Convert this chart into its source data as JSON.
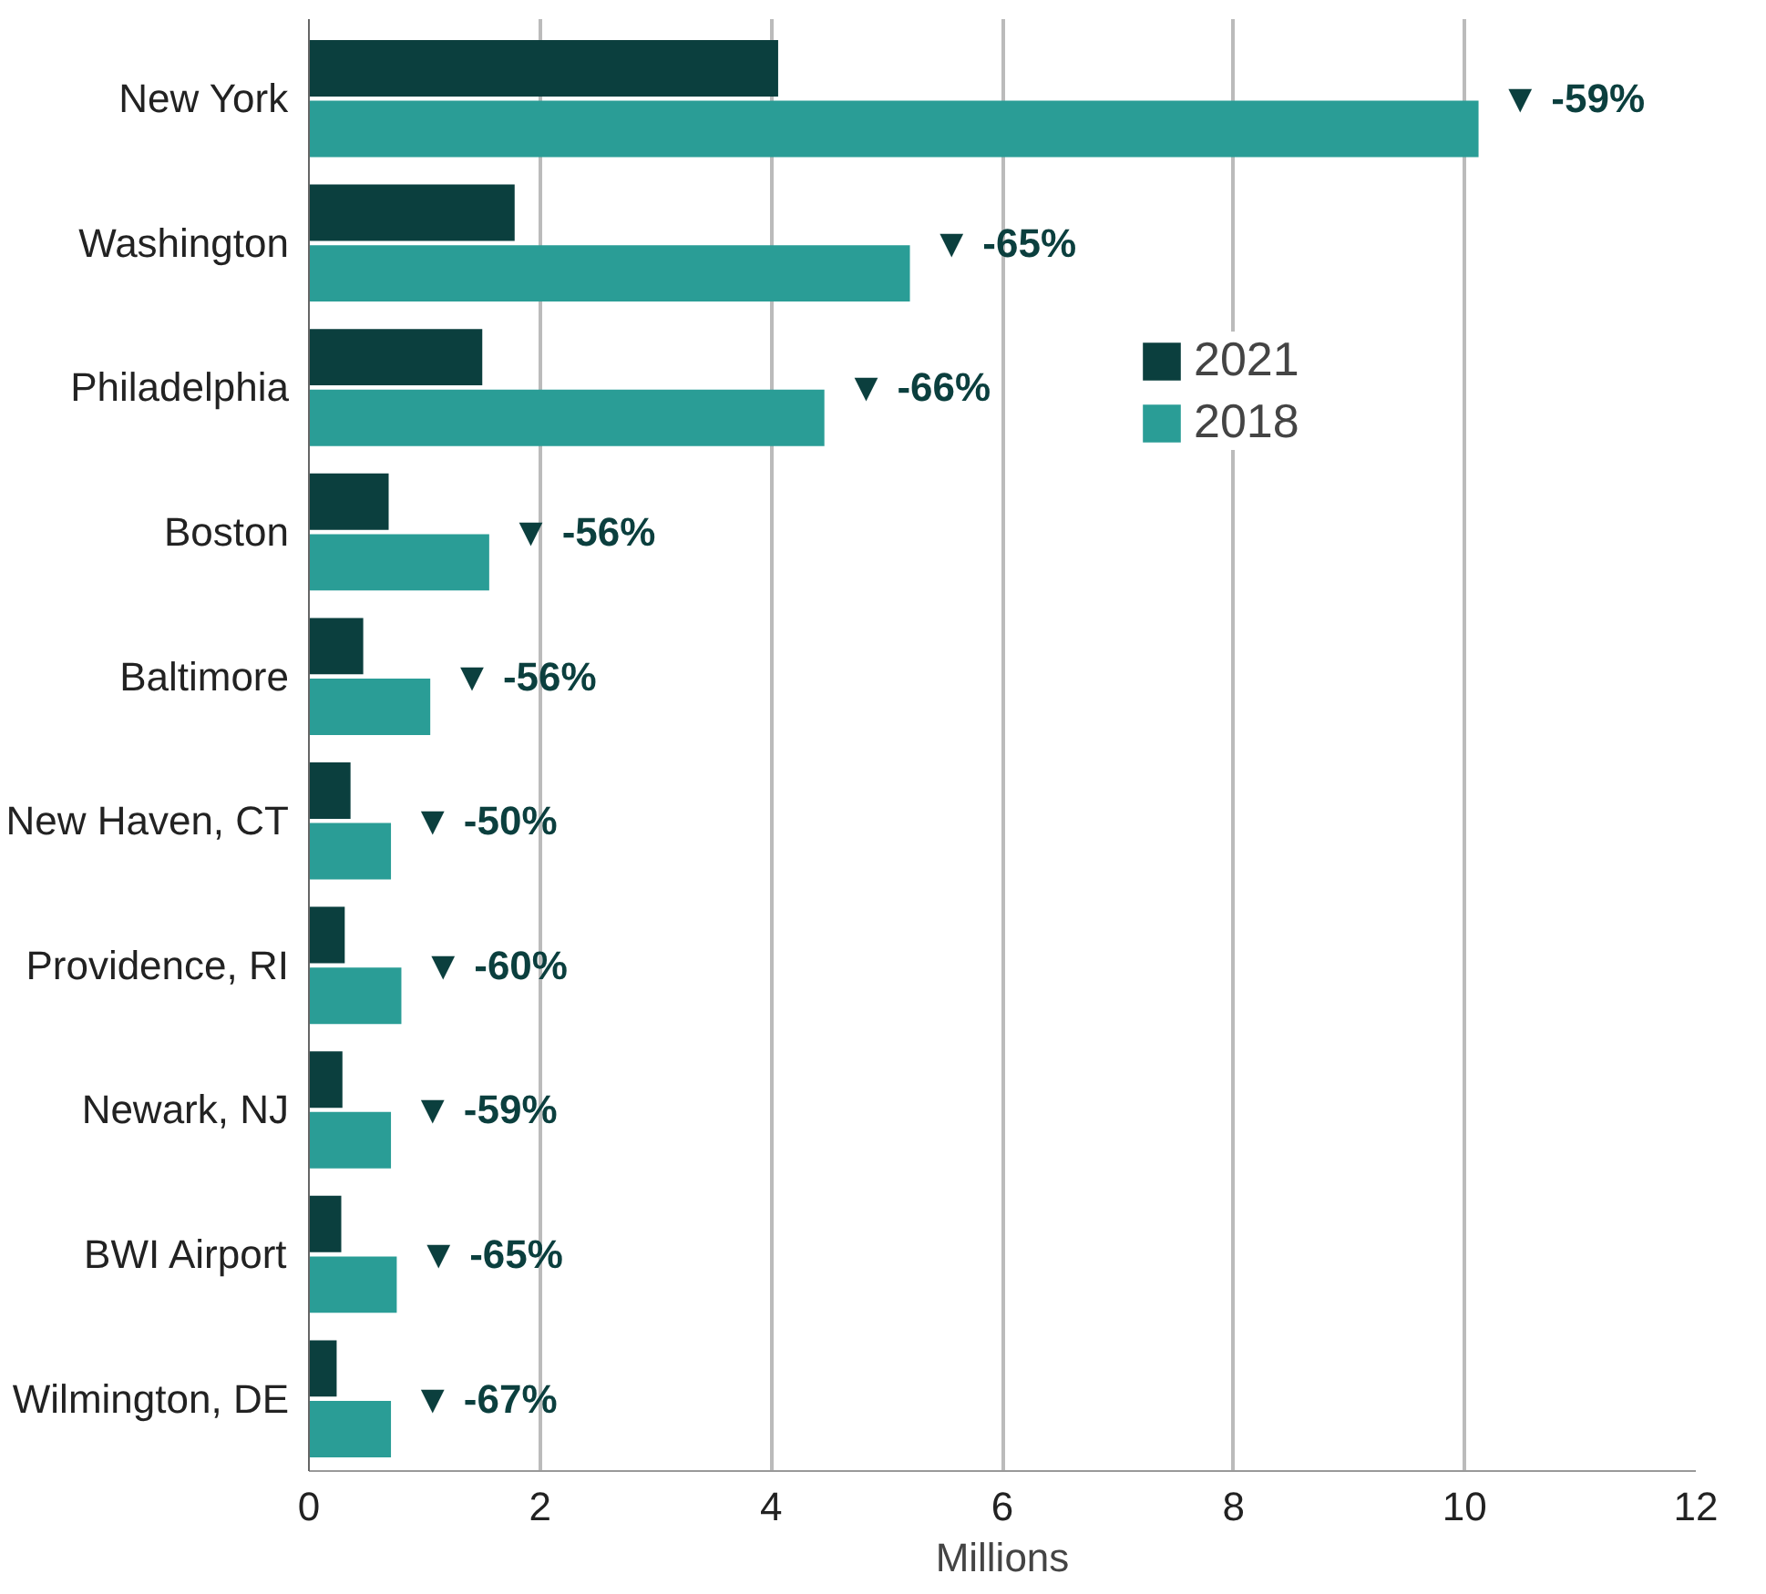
{
  "chart_data": {
    "type": "bar",
    "orientation": "horizontal",
    "xlabel": "Millions",
    "categories": [
      "New York",
      "Washington",
      "Philadelphia",
      "Boston",
      "Baltimore",
      "New Haven, CT",
      "Providence, RI",
      "Newark, NJ",
      "BWI Airport",
      "Wilmington, DE"
    ],
    "series": [
      {
        "name": "2021",
        "color": "#0b3f3e",
        "values": [
          4.06,
          1.78,
          1.5,
          0.69,
          0.47,
          0.36,
          0.31,
          0.29,
          0.28,
          0.24
        ]
      },
      {
        "name": "2018",
        "color": "#2a9d96",
        "values": [
          10.12,
          5.2,
          4.46,
          1.56,
          1.05,
          0.71,
          0.8,
          0.71,
          0.76,
          0.71
        ]
      }
    ],
    "xlim": [
      0,
      12
    ],
    "xticks": [
      0,
      2,
      4,
      6,
      8,
      10,
      12
    ],
    "grid": "x",
    "legend": "top right",
    "annotations": [
      {
        "text": "▼ -59%",
        "x": 10.12,
        "y": "New York"
      },
      {
        "text": "▼ -65%",
        "x": 5.2,
        "y": "Washington"
      },
      {
        "text": "▼ -66%",
        "x": 4.46,
        "y": "Philadelphia"
      },
      {
        "text": "▼ -56%",
        "x": 1.56,
        "y": "Boston"
      },
      {
        "text": "▼ -56%",
        "x": 1.05,
        "y": "Baltimore"
      },
      {
        "text": "▼ -50%",
        "x": 0.71,
        "y": "New Haven, CT"
      },
      {
        "text": "▼ -60%",
        "x": 0.8,
        "y": "Providence, RI"
      },
      {
        "text": "▼ -59%",
        "x": 0.71,
        "y": "Newark, NJ"
      },
      {
        "text": "▼ -65%",
        "x": 0.76,
        "y": "BWI Airport"
      },
      {
        "text": "▼ -67%",
        "x": 0.71,
        "y": "Wilmington, DE"
      }
    ]
  }
}
